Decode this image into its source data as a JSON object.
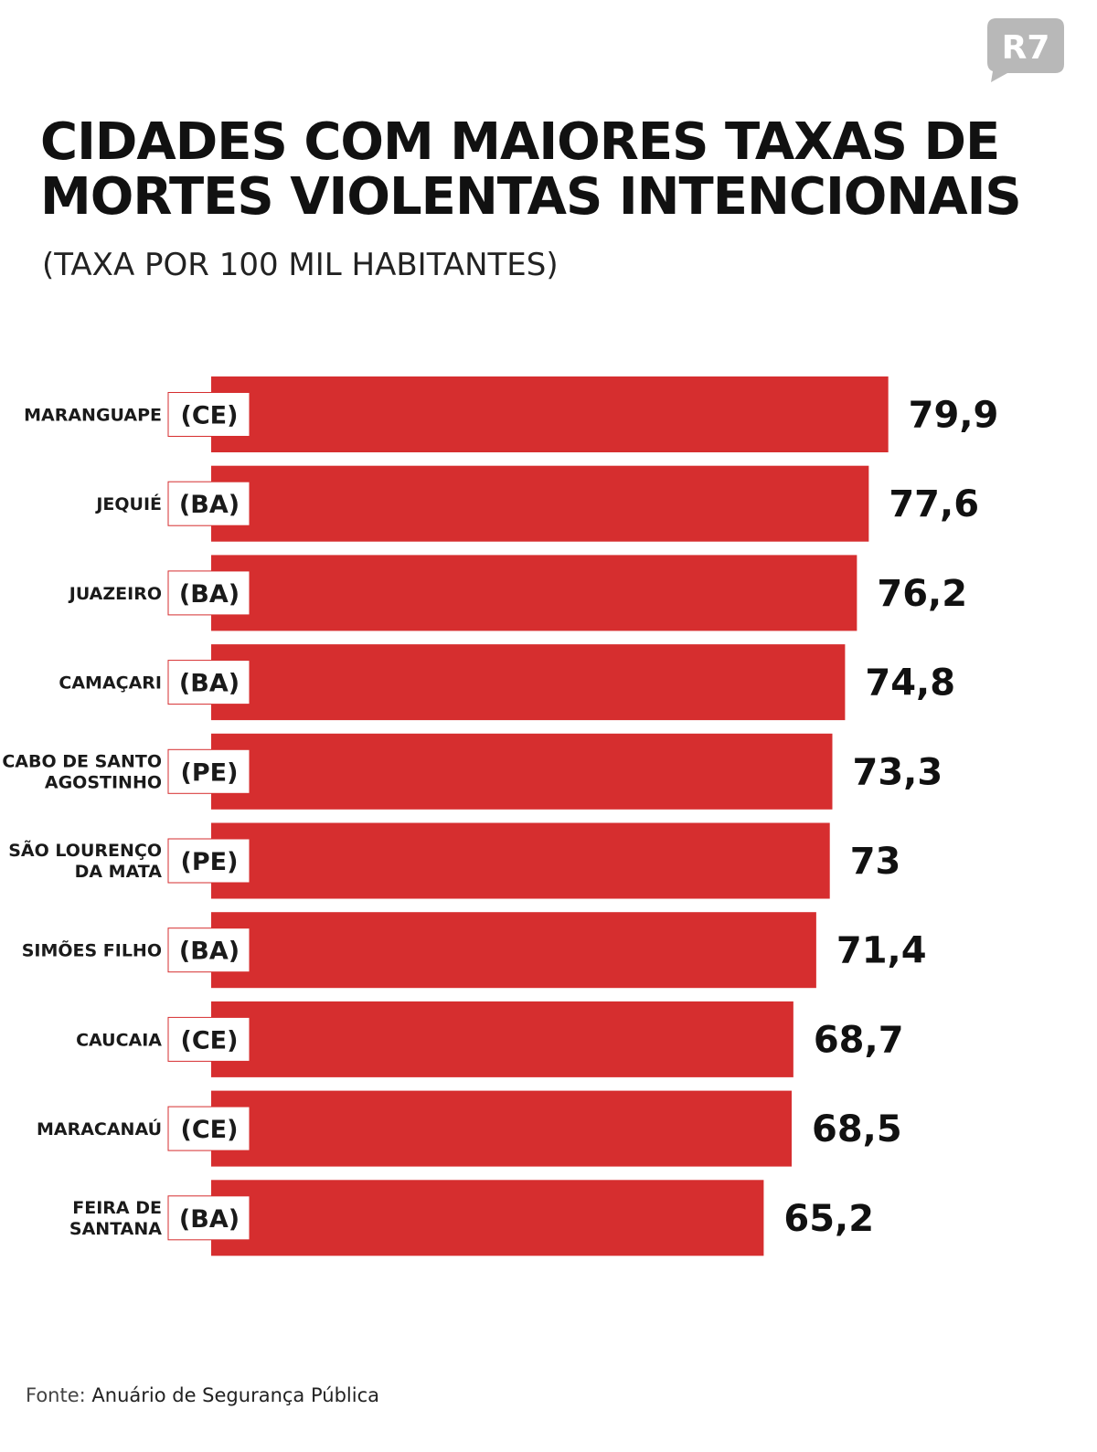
{
  "logo": {
    "text": "R7",
    "color": "#b8b8b8"
  },
  "chart_data": {
    "type": "bar",
    "orientation": "horizontal",
    "title": "CIDADES COM MAIORES TAXAS DE MORTES VIOLENTAS INTENCIONAIS",
    "subtitle": "(TAXA POR 100 MIL HABITANTES)",
    "categories": [
      {
        "city": [
          "MARANGUAPE"
        ],
        "state": "(CE)"
      },
      {
        "city": [
          "JEQUIÉ"
        ],
        "state": "(BA)"
      },
      {
        "city": [
          "JUAZEIRO"
        ],
        "state": "(BA)"
      },
      {
        "city": [
          "CAMAÇARI"
        ],
        "state": "(BA)"
      },
      {
        "city": [
          "CABO DE SANTO",
          "AGOSTINHO"
        ],
        "state": "(PE)"
      },
      {
        "city": [
          "SÃO LOURENÇO",
          "DA MATA"
        ],
        "state": "(PE)"
      },
      {
        "city": [
          "SIMÕES FILHO"
        ],
        "state": "(BA)"
      },
      {
        "city": [
          "CAUCAIA"
        ],
        "state": "(CE)"
      },
      {
        "city": [
          "MARACANAÚ"
        ],
        "state": "(CE)"
      },
      {
        "city": [
          "FEIRA DE",
          "SANTANA"
        ],
        "state": "(BA)"
      }
    ],
    "values": [
      79.9,
      77.6,
      76.2,
      74.8,
      73.3,
      73,
      71.4,
      68.7,
      68.5,
      65.2
    ],
    "value_labels": [
      "79,9",
      "77,6",
      "76,2",
      "74,8",
      "73,3",
      "73",
      "71,4",
      "68,7",
      "68,5",
      "65,2"
    ],
    "bar_color": "#d62e2f",
    "axis": "none",
    "grid": false
  },
  "source": {
    "prefix": "Fonte:",
    "text": "Anuário de Segurança Pública"
  }
}
